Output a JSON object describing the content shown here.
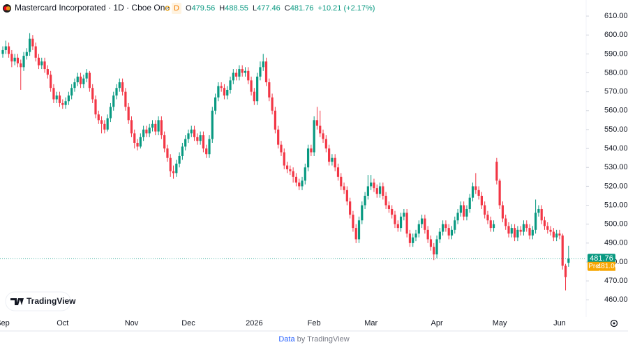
{
  "header": {
    "title": "Mastercard Incorporated · 1D · Cboe One",
    "badge": "D",
    "ohlc_labels": [
      "O",
      "H",
      "L",
      "C"
    ],
    "change": "+10.21 (+2.17%)"
  },
  "pre_label": "Pre",
  "pre_price": "481.00",
  "logo": "TradingView",
  "footer": {
    "data": "Data",
    "by": "by TradingView"
  },
  "chart_data": {
    "type": "candlestick",
    "colors": {
      "up": "#089981",
      "down": "#f23645"
    },
    "ylim": [
      452,
      618.5
    ],
    "yticks": [
      {
        "value": 460,
        "label": "460.00"
      },
      {
        "value": 470,
        "label": "470.00"
      },
      {
        "value": 480,
        "label": "480.00"
      },
      {
        "value": 490,
        "label": "490.00"
      },
      {
        "value": 500,
        "label": "500.00"
      },
      {
        "value": 510,
        "label": "510.00"
      },
      {
        "value": 520,
        "label": "520.00"
      },
      {
        "value": 530,
        "label": "530.00"
      },
      {
        "value": 540,
        "label": "540.00"
      },
      {
        "value": 550,
        "label": "550.00"
      },
      {
        "value": 560,
        "label": "560.00"
      },
      {
        "value": 570,
        "label": "570.00"
      },
      {
        "value": 580,
        "label": "580.00"
      },
      {
        "value": 590,
        "label": "590.00"
      },
      {
        "value": 600,
        "label": "600.00"
      },
      {
        "value": 610,
        "label": "610.00"
      }
    ],
    "categories": [
      "Sep",
      null,
      null,
      null,
      null,
      null,
      null,
      null,
      null,
      null,
      null,
      null,
      null,
      null,
      null,
      null,
      null,
      null,
      null,
      null,
      "Oct",
      null,
      null,
      null,
      null,
      null,
      null,
      null,
      null,
      null,
      null,
      null,
      null,
      null,
      null,
      null,
      null,
      null,
      null,
      null,
      null,
      null,
      null,
      "Nov",
      null,
      null,
      null,
      null,
      null,
      null,
      null,
      null,
      null,
      null,
      null,
      null,
      null,
      null,
      null,
      null,
      null,
      null,
      "Dec",
      null,
      null,
      null,
      null,
      null,
      null,
      null,
      null,
      null,
      null,
      null,
      null,
      null,
      null,
      null,
      null,
      null,
      null,
      null,
      null,
      null,
      "2026",
      null,
      null,
      null,
      null,
      null,
      null,
      null,
      null,
      null,
      null,
      null,
      null,
      null,
      null,
      null,
      null,
      null,
      null,
      null,
      "Feb",
      null,
      null,
      null,
      null,
      null,
      null,
      null,
      null,
      null,
      null,
      null,
      null,
      null,
      null,
      null,
      null,
      null,
      null,
      "Mar",
      null,
      null,
      null,
      null,
      null,
      null,
      null,
      null,
      null,
      null,
      null,
      null,
      null,
      null,
      null,
      null,
      null,
      null,
      null,
      null,
      null,
      "Apr",
      null,
      null,
      null,
      null,
      null,
      null,
      null,
      null,
      null,
      null,
      null,
      null,
      null,
      null,
      null,
      null,
      null,
      null,
      null,
      null,
      "May",
      null,
      null,
      null,
      null,
      null,
      null,
      null,
      null,
      null,
      null,
      null,
      null,
      null,
      null,
      null,
      null,
      null,
      null,
      null,
      "Jun",
      null,
      null,
      null
    ],
    "open": [
      590,
      592,
      594,
      590,
      586,
      588,
      585,
      583,
      589,
      591,
      598,
      594,
      588,
      584,
      586,
      582,
      579,
      572,
      566,
      568,
      564,
      563,
      565,
      568,
      572,
      575,
      578,
      574,
      577,
      580,
      572,
      566,
      558,
      555,
      553,
      550,
      556,
      562,
      568,
      572,
      575,
      570,
      562,
      555,
      548,
      543,
      541,
      546,
      550,
      548,
      551,
      553,
      549,
      555,
      547,
      540,
      535,
      528,
      527,
      532,
      536,
      541,
      545,
      548,
      550,
      546,
      544,
      547,
      540,
      537,
      545,
      560,
      567,
      573,
      572,
      568,
      571,
      576,
      580,
      578,
      582,
      580,
      581,
      576,
      570,
      565,
      578,
      583,
      586,
      575,
      567,
      560,
      550,
      542,
      538,
      531,
      529,
      528,
      525,
      522,
      520,
      523,
      530,
      540,
      538,
      555,
      552,
      548,
      545,
      540,
      533,
      535,
      530,
      525,
      520,
      518,
      512,
      505,
      498,
      492,
      502,
      510,
      515,
      520,
      522,
      519,
      516,
      520,
      515,
      510,
      508,
      505,
      500,
      498,
      504,
      506,
      495,
      490,
      493,
      495,
      500,
      503,
      497,
      492,
      488,
      484,
      492,
      496,
      500,
      498,
      494,
      497,
      502,
      506,
      510,
      504,
      508,
      514,
      520,
      518,
      515,
      510,
      505,
      502,
      498,
      533,
      523,
      510,
      503,
      499,
      495,
      498,
      493,
      497,
      496,
      500,
      498,
      494,
      497,
      506,
      508,
      502,
      499,
      497,
      496,
      493,
      495,
      494,
      478,
      479.56
    ],
    "high": [
      594,
      597,
      596,
      592,
      590,
      590,
      587,
      591,
      593,
      601,
      600,
      596,
      590,
      588,
      588,
      584,
      581,
      574,
      570,
      570,
      566,
      567,
      570,
      574,
      577,
      580,
      580,
      579,
      582,
      581,
      574,
      568,
      560,
      557,
      555,
      558,
      564,
      570,
      574,
      577,
      577,
      572,
      564,
      557,
      550,
      545,
      548,
      552,
      552,
      553,
      555,
      555,
      557,
      557,
      549,
      542,
      537,
      531,
      534,
      538,
      543,
      547,
      550,
      552,
      552,
      548,
      549,
      549,
      542,
      547,
      562,
      569,
      575,
      575,
      574,
      573,
      578,
      582,
      582,
      584,
      584,
      583,
      583,
      578,
      572,
      580,
      586,
      590,
      588,
      577,
      569,
      562,
      552,
      544,
      540,
      533,
      531,
      530,
      527,
      524,
      525,
      532,
      542,
      542,
      557,
      562,
      560,
      550,
      547,
      542,
      537,
      537,
      532,
      527,
      522,
      520,
      514,
      507,
      500,
      504,
      512,
      517,
      526,
      526,
      524,
      521,
      522,
      522,
      517,
      512,
      510,
      507,
      502,
      506,
      508,
      508,
      497,
      495,
      497,
      502,
      505,
      505,
      499,
      494,
      490,
      494,
      498,
      502,
      502,
      500,
      499,
      504,
      508,
      512,
      512,
      510,
      516,
      522,
      527,
      520,
      517,
      512,
      507,
      504,
      502,
      535,
      524,
      512,
      505,
      501,
      500,
      500,
      499,
      499,
      502,
      502,
      500,
      499,
      513,
      510,
      510,
      504,
      501,
      499,
      498,
      497,
      497,
      495,
      479,
      488.55
    ],
    "low": [
      588,
      590,
      588,
      583,
      584,
      583,
      571,
      581,
      587,
      589,
      592,
      586,
      582,
      582,
      580,
      577,
      570,
      564,
      564,
      562,
      561,
      561,
      563,
      566,
      570,
      573,
      572,
      572,
      575,
      570,
      564,
      556,
      553,
      548,
      548,
      549,
      554,
      560,
      566,
      570,
      568,
      560,
      553,
      546,
      540,
      539,
      540,
      544,
      546,
      546,
      549,
      547,
      547,
      545,
      538,
      533,
      525,
      524,
      525,
      530,
      534,
      539,
      543,
      546,
      544,
      542,
      542,
      538,
      535,
      535,
      543,
      558,
      565,
      570,
      566,
      566,
      569,
      574,
      576,
      576,
      578,
      578,
      574,
      568,
      563,
      563,
      576,
      581,
      573,
      565,
      558,
      548,
      540,
      536,
      529,
      527,
      526,
      522,
      520,
      518,
      518,
      521,
      528,
      536,
      536,
      550,
      546,
      543,
      538,
      531,
      531,
      528,
      523,
      518,
      516,
      510,
      503,
      496,
      490,
      490,
      500,
      508,
      513,
      518,
      517,
      514,
      514,
      513,
      508,
      506,
      503,
      498,
      496,
      496,
      502,
      493,
      488,
      488,
      491,
      493,
      498,
      495,
      490,
      486,
      481,
      482,
      490,
      494,
      496,
      492,
      492,
      495,
      500,
      504,
      502,
      502,
      506,
      512,
      516,
      513,
      508,
      503,
      500,
      496,
      496,
      521,
      508,
      501,
      497,
      493,
      493,
      491,
      491,
      494,
      494,
      496,
      492,
      492,
      495,
      504,
      500,
      497,
      495,
      494,
      491,
      491,
      492,
      476,
      465,
      477.46
    ],
    "close": [
      592,
      594,
      590,
      586,
      588,
      585,
      583,
      589,
      591,
      598,
      594,
      588,
      584,
      586,
      582,
      579,
      572,
      566,
      568,
      564,
      563,
      565,
      568,
      572,
      575,
      578,
      574,
      577,
      580,
      572,
      566,
      558,
      555,
      553,
      550,
      556,
      562,
      568,
      572,
      575,
      570,
      562,
      555,
      548,
      543,
      541,
      546,
      550,
      548,
      551,
      553,
      549,
      555,
      547,
      540,
      535,
      528,
      527,
      532,
      536,
      541,
      545,
      548,
      550,
      546,
      544,
      547,
      540,
      537,
      545,
      560,
      567,
      573,
      572,
      568,
      571,
      576,
      580,
      578,
      582,
      580,
      581,
      576,
      570,
      565,
      578,
      583,
      586,
      575,
      567,
      560,
      550,
      542,
      538,
      531,
      529,
      528,
      525,
      522,
      520,
      523,
      530,
      540,
      538,
      555,
      552,
      548,
      545,
      540,
      533,
      535,
      530,
      525,
      520,
      518,
      512,
      505,
      498,
      492,
      502,
      510,
      515,
      520,
      522,
      519,
      516,
      520,
      515,
      510,
      508,
      505,
      500,
      498,
      504,
      506,
      495,
      490,
      493,
      495,
      500,
      503,
      497,
      492,
      488,
      484,
      492,
      496,
      500,
      498,
      494,
      497,
      502,
      506,
      510,
      504,
      508,
      514,
      520,
      518,
      515,
      510,
      505,
      502,
      498,
      500,
      523,
      510,
      503,
      499,
      495,
      498,
      493,
      497,
      496,
      500,
      498,
      494,
      497,
      506,
      508,
      502,
      499,
      497,
      496,
      493,
      495,
      494,
      478,
      472,
      481.76
    ]
  }
}
